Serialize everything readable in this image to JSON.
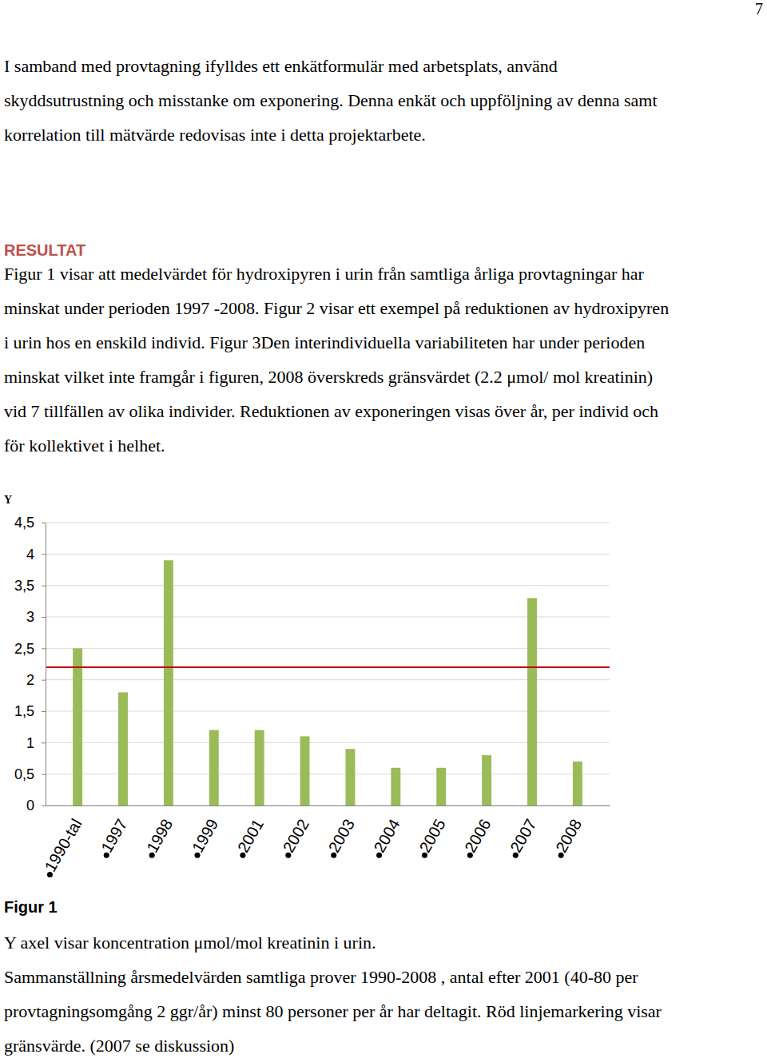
{
  "page_number": 7,
  "intro": [
    "I samband med provtagning ifylldes ett enkätformulär med arbetsplats, använd",
    "skyddsutrustning och misstanke om exponering. Denna enkät och uppföljning av denna samt",
    "korrelation till mätvärde redovisas inte i detta projektarbete."
  ],
  "heading": "RESULTAT",
  "results": [
    "Figur 1 visar att medelvärdet för hydroxipyren i urin från samtliga årliga provtagningar har",
    "minskat under perioden 1997 -2008. Figur 2 visar ett exempel på reduktionen av hydroxipyren",
    "i urin hos en enskild individ. Figur 3Den interindividuella variabiliteten har under perioden",
    "minskat vilket inte framgår i figuren, 2008 överskreds gränsvärdet (2.2 μmol/ mol kreatinin)",
    "vid 7 tillfällen av olika individer. Reduktionen av exponeringen visas över år, per individ och",
    "för kollektivet i helhet."
  ],
  "chart_data": {
    "type": "bar",
    "ylabel": "Y",
    "categories": [
      "1990-tal",
      "1997",
      "1998",
      "1999",
      "2001",
      "2002",
      "2003",
      "2004",
      "2005",
      "2006",
      "2007",
      "2008"
    ],
    "values": [
      2.5,
      1.8,
      3.9,
      1.2,
      1.2,
      1.1,
      0.9,
      0.6,
      0.6,
      0.8,
      3.3,
      0.7
    ],
    "color": "#9bbb59",
    "threshold": 2.2,
    "ylim": [
      0,
      4.5
    ],
    "yticks": [
      0,
      {
        "value": 0.5,
        "label": "0,5"
      },
      1,
      {
        "value": 1.5,
        "label": "1,5"
      },
      2,
      {
        "value": 2.5,
        "label": "2,5"
      },
      3,
      {
        "value": 3.5,
        "label": "3,5"
      },
      4,
      {
        "value": 4.5,
        "label": "4,5"
      }
    ],
    "grid": true
  },
  "figure_label": "Figur 1",
  "caption": [
    "Y axel visar koncentration μmol/mol kreatinin i urin.",
    "Sammanställning årsmedelvärden samtliga prover 1990-2008 , antal efter 2001 (40-80 per",
    "provtagningsomgång 2 ggr/år) minst 80 personer per år har deltagit. Röd linjemarkering visar",
    "gränsvärde. (2007 se diskussion)"
  ]
}
